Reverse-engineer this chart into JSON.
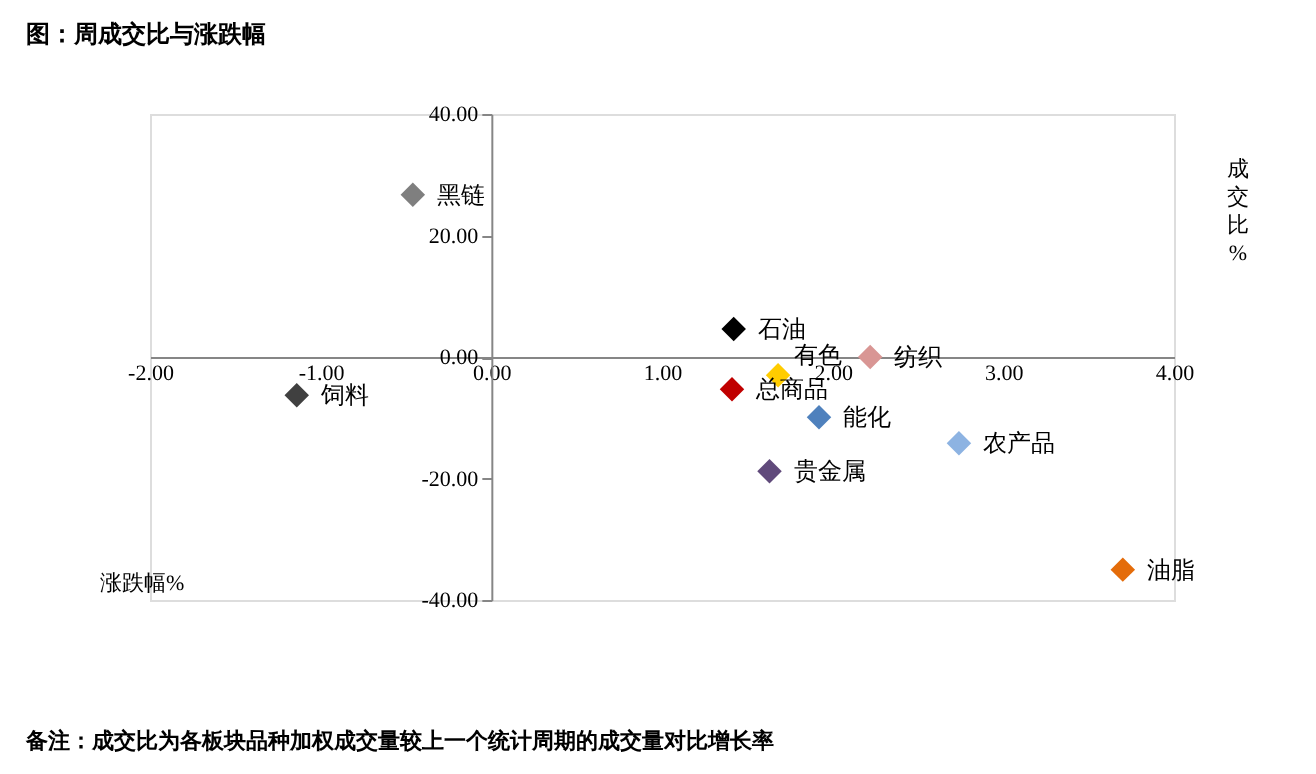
{
  "chart_data": {
    "type": "scatter",
    "title": "图：周成交比与涨跌幅",
    "xlabel": "涨跌幅%",
    "ylabel": "成交比%",
    "series": [
      {
        "name": "黑链",
        "color": "#7f7f7f",
        "x": [
          -0.46
        ],
        "values": [
          26.7
        ]
      },
      {
        "name": "饲料",
        "color": "#404040",
        "x": [
          -1.14
        ],
        "values": [
          -6.3
        ]
      },
      {
        "name": "石油",
        "color": "#000000",
        "x": [
          1.42
        ],
        "values": [
          4.6
        ]
      },
      {
        "name": "纺织",
        "color": "#d99694",
        "x": [
          2.22
        ],
        "values": [
          0.0
        ]
      },
      {
        "name": "有色",
        "color": "#ffcc00",
        "x": [
          1.68
        ],
        "values": [
          -3.0
        ]
      },
      {
        "name": "总商品",
        "color": "#c00000",
        "x": [
          1.41
        ],
        "values": [
          -5.3
        ]
      },
      {
        "name": "能化",
        "color": "#4f81bd",
        "x": [
          1.92
        ],
        "values": [
          -9.9
        ]
      },
      {
        "name": "农产品",
        "color": "#8db3e2",
        "x": [
          2.74
        ],
        "values": [
          -14.2
        ]
      },
      {
        "name": "贵金属",
        "color": "#604a7b",
        "x": [
          1.63
        ],
        "values": [
          -18.8
        ]
      },
      {
        "name": "油脂",
        "color": "#e46c0a",
        "x": [
          3.7
        ],
        "values": [
          -35.0
        ]
      }
    ],
    "xlim": [
      -2,
      4
    ],
    "ylim": [
      -40,
      40
    ],
    "xticks": [
      {
        "value": -2,
        "label": "-2.00"
      },
      {
        "value": -1,
        "label": "-1.00"
      },
      {
        "value": 0,
        "label": "0.00"
      },
      {
        "value": 1,
        "label": "1.00"
      },
      {
        "value": 2,
        "label": "2.00"
      },
      {
        "value": 3,
        "label": "3.00"
      },
      {
        "value": 4,
        "label": "4.00"
      }
    ],
    "yticks": [
      {
        "value": -40,
        "label": "-40.00"
      },
      {
        "value": -20,
        "label": "-20.00"
      },
      {
        "value": 0,
        "label": "0.00"
      },
      {
        "value": 20,
        "label": "20.00"
      },
      {
        "value": 40,
        "label": "40.00"
      }
    ],
    "marker": "diamond",
    "grid": false,
    "legend": false,
    "annotations": [
      "备注：成交比为各板块品种加权成交量较上一个统计周期的成交量对比增长率"
    ]
  }
}
